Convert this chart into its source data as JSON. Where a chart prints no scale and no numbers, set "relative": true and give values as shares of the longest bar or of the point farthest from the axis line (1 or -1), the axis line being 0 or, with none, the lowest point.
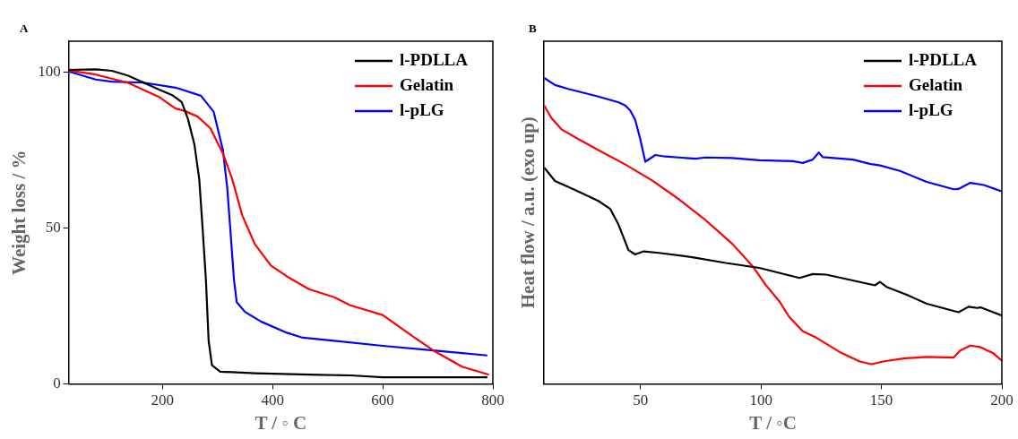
{
  "chart_data": [
    {
      "type": "line",
      "xlabel": "T / ◦ C",
      "ylabel": "Weight loss / %",
      "annotations": [
        "A"
      ],
      "xlim": [
        30,
        800
      ],
      "ylim": [
        0,
        110
      ],
      "xticks": [
        200,
        400,
        600,
        800
      ],
      "yticks": [
        0,
        50,
        100
      ],
      "grid": false,
      "legend": "top right",
      "marker": "none",
      "line_style": "solid",
      "series": [
        {
          "name": "l-PDLLA",
          "color": "#000000",
          "x": [
            30,
            79,
            108,
            137,
            166,
            195,
            218,
            235,
            246,
            258,
            267,
            273,
            279,
            284,
            290,
            305,
            368,
            484,
            542,
            600,
            715,
            790
          ],
          "values": [
            100.8,
            101,
            100.5,
            99,
            96.7,
            94.4,
            92.7,
            90.5,
            85.3,
            77,
            65.6,
            50,
            33.5,
            13.8,
            6,
            3.9,
            3.4,
            2.9,
            2.7,
            2.1,
            2.1,
            2.1
          ]
        },
        {
          "name": "Gelatin",
          "color": "#ff0000",
          "x": [
            30,
            79,
            137,
            195,
            224,
            241,
            264,
            287,
            310,
            327,
            345,
            368,
            397,
            426,
            466,
            512,
            541,
            600,
            658,
            692,
            744,
            793
          ],
          "values": [
            100.6,
            99.3,
            96.7,
            92,
            88.4,
            87.6,
            85.8,
            82.1,
            73.9,
            65.6,
            54.1,
            44.8,
            38,
            34.5,
            30.4,
            27.8,
            25.2,
            22.1,
            14.8,
            10.7,
            5.5,
            2.9
          ]
        },
        {
          "name": "l-pLG",
          "color": "#0000ff",
          "x": [
            30,
            79,
            108,
            166,
            224,
            270,
            293,
            310,
            318,
            324,
            330,
            335,
            350,
            379,
            426,
            455,
            512,
            600,
            692,
            790
          ],
          "values": [
            100.3,
            97.7,
            97,
            96.7,
            95.1,
            92.5,
            87.4,
            75,
            62.5,
            48,
            33.5,
            26.2,
            23.1,
            20,
            16.4,
            14.8,
            13.8,
            12.2,
            10.7,
            9.1
          ]
        }
      ]
    },
    {
      "type": "line",
      "xlabel": "T / ◦C",
      "ylabel": "Heat flow / a.u. (exo up)",
      "annotations": [
        "B"
      ],
      "xlim": [
        10,
        200
      ],
      "xticks": [
        50,
        100,
        150,
        200
      ],
      "relative": true,
      "tick_labels": "x",
      "grid": false,
      "legend": "top right",
      "marker": "none",
      "line_style": "solid",
      "series": [
        {
          "name": "l-PDLLA",
          "color": "#000000",
          "x": [
            10,
            14.5,
            22.8,
            32.5,
            37.4,
            40.9,
            45,
            47.8,
            51.3,
            57.6,
            71.5,
            85.4,
            99.3,
            116,
            121.5,
            127.1,
            141,
            147.3,
            149.4,
            152.1,
            160.5,
            168.8,
            182,
            186.2,
            189.7,
            191.1,
            200
          ],
          "values": [
            0.707,
            0.663,
            0.634,
            0.598,
            0.572,
            0.52,
            0.437,
            0.423,
            0.433,
            0.428,
            0.414,
            0.395,
            0.379,
            0.346,
            0.359,
            0.357,
            0.333,
            0.322,
            0.333,
            0.317,
            0.291,
            0.262,
            0.234,
            0.252,
            0.248,
            0.25,
            0.223
          ]
        },
        {
          "name": "Gelatin",
          "color": "#ff0000",
          "x": [
            10,
            13.1,
            17.2,
            24.2,
            32.5,
            43.7,
            54.8,
            66,
            77,
            88.2,
            96.5,
            102,
            107.6,
            111.8,
            117.4,
            122.9,
            132.7,
            141,
            145.9,
            150.7,
            159.1,
            168.8,
            180,
            182.7,
            186.9,
            191.1,
            196.6,
            200
          ],
          "values": [
            0.91,
            0.868,
            0.832,
            0.8,
            0.764,
            0.717,
            0.665,
            0.603,
            0.535,
            0.457,
            0.385,
            0.323,
            0.27,
            0.218,
            0.172,
            0.151,
            0.104,
            0.073,
            0.064,
            0.073,
            0.083,
            0.088,
            0.086,
            0.109,
            0.125,
            0.12,
            0.099,
            0.075
          ]
        },
        {
          "name": "l-pLG",
          "color": "#0000ff",
          "x": [
            10,
            14.5,
            20,
            32.5,
            40.9,
            43.7,
            45.7,
            47.8,
            49.9,
            52,
            56.2,
            60.3,
            72.9,
            77,
            88.2,
            99.3,
            113.2,
            117.4,
            121.5,
            124,
            125.7,
            138.2,
            145.2,
            149.4,
            157.7,
            168.8,
            180,
            182,
            186.9,
            192.5,
            200
          ],
          "values": [
            1,
            0.977,
            0.964,
            0.939,
            0.92,
            0.91,
            0.894,
            0.863,
            0.8,
            0.726,
            0.748,
            0.743,
            0.736,
            0.74,
            0.738,
            0.731,
            0.728,
            0.722,
            0.733,
            0.756,
            0.741,
            0.733,
            0.719,
            0.714,
            0.696,
            0.66,
            0.636,
            0.637,
            0.657,
            0.65,
            0.629
          ]
        }
      ]
    }
  ]
}
